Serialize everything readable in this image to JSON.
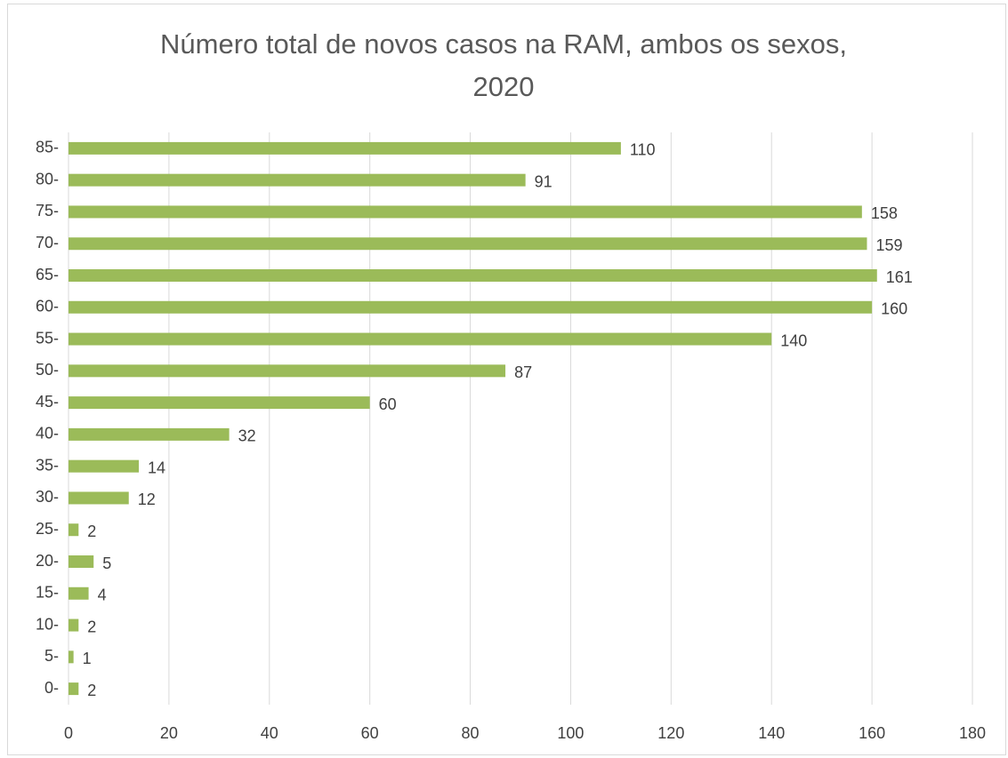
{
  "chart_data": {
    "type": "barh",
    "title": "Número total de novos casos na RAM, ambos os sexos, 2020",
    "categories": [
      "0-",
      "5-",
      "10-",
      "15-",
      "20-",
      "25-",
      "30-",
      "35-",
      "40-",
      "45-",
      "50-",
      "55-",
      "60-",
      "65-",
      "70-",
      "75-",
      "80-",
      "85-"
    ],
    "values": [
      2,
      1,
      2,
      4,
      5,
      2,
      12,
      14,
      32,
      60,
      87,
      140,
      160,
      161,
      159,
      158,
      91,
      110
    ],
    "color": "#9bbb59",
    "xlim": [
      0,
      180
    ],
    "xticks": [
      0,
      20,
      40,
      60,
      80,
      100,
      120,
      140,
      160,
      180
    ],
    "grid": true
  }
}
